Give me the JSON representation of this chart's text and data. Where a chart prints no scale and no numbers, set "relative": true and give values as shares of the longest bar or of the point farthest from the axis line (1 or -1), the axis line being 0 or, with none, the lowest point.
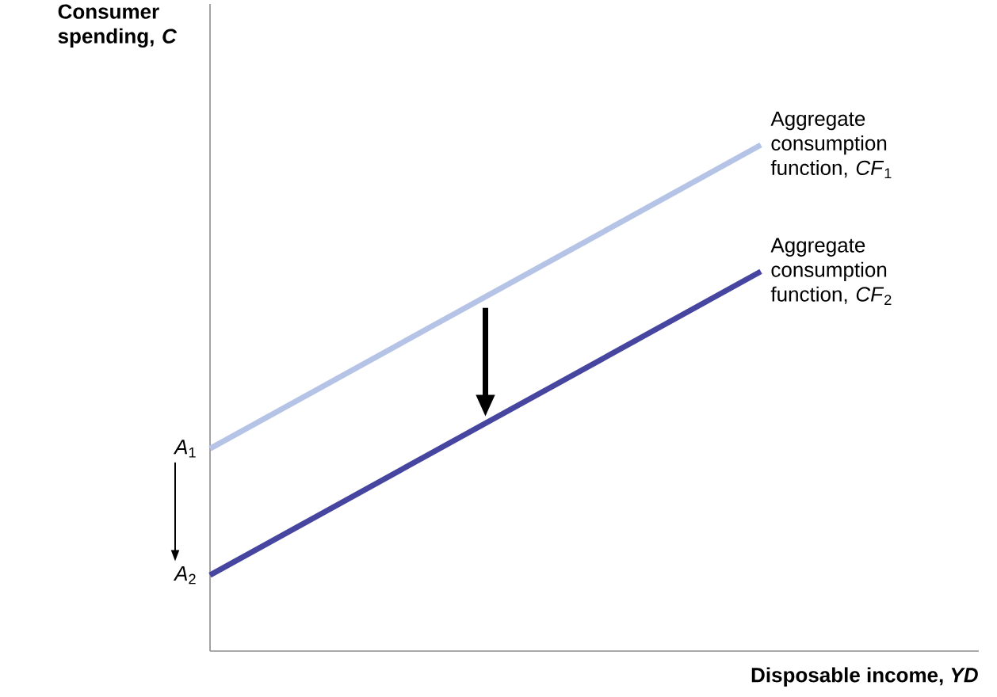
{
  "chart_data": {
    "type": "line",
    "relative": true,
    "xlabel": "Disposable income, *YD*",
    "ylabel": "Consumer spending, *C*",
    "categories": [
      null,
      null
    ],
    "series": [
      {
        "name": "Aggregate consumption function, *CF*$_{1}$",
        "color": "#b4c3e6",
        "values": [
          0.4,
          1
        ]
      },
      {
        "name": "Aggregate consumption function, *CF*$_{2}$",
        "color": "#4646a0",
        "values": [
          0.15,
          0.75
        ]
      }
    ],
    "annotations": [
      "*A*$_{1}$",
      "*A*$_{2}$"
    ]
  }
}
